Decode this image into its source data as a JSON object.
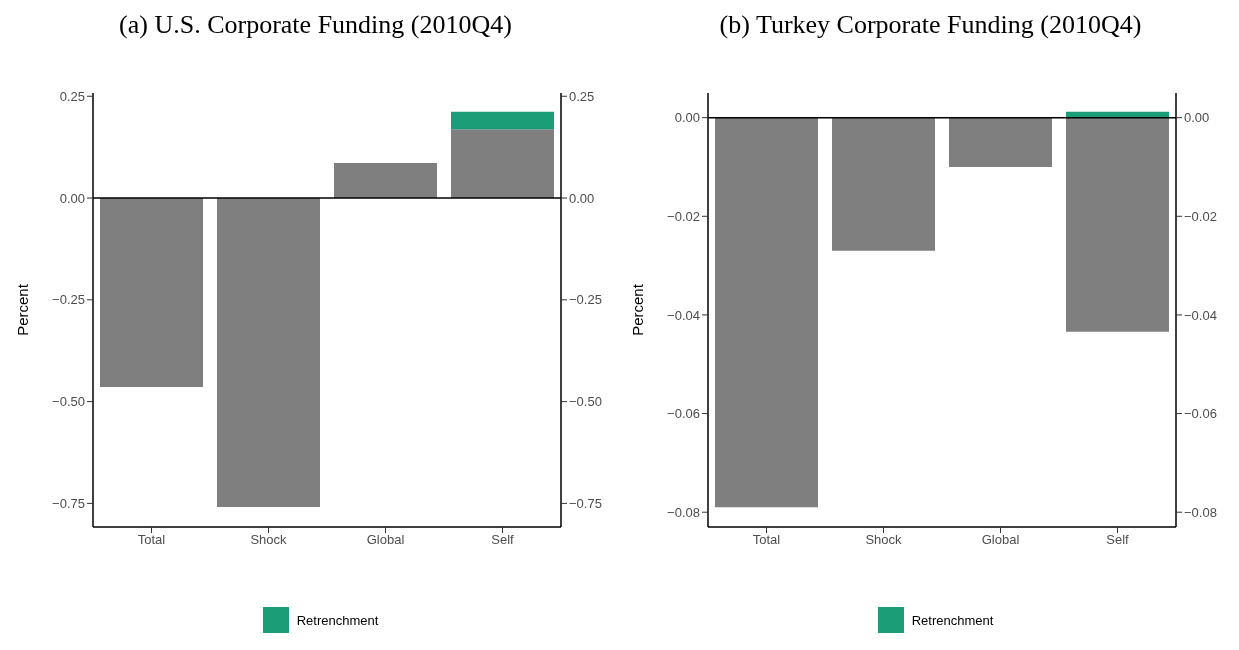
{
  "chart_data": [
    {
      "type": "bar",
      "title": "(a) U.S. Corporate Funding (2010Q4)",
      "ylabel": "Percent",
      "categories": [
        "Total",
        "Shock",
        "Global",
        "Self"
      ],
      "stacked": true,
      "series": [
        {
          "color": "#7f7f7f",
          "values": [
            -0.464,
            -0.759,
            0.086,
            0.169
          ]
        },
        {
          "name": "Retrenchment",
          "color": "#1b9e77",
          "values": [
            null,
            null,
            null,
            0.043
          ]
        }
      ],
      "ylim": [
        -0.808,
        0.258
      ],
      "yticks": [
        {
          "value": -0.75,
          "label": "−0.75"
        },
        {
          "value": -0.5,
          "label": "−0.50"
        },
        {
          "value": -0.25,
          "label": "−0.25"
        },
        {
          "value": 0,
          "label": "0.00"
        },
        {
          "value": 0.25,
          "label": "0.25"
        }
      ],
      "y2lim": [
        -0.808,
        0.258
      ],
      "y2ticks": [
        {
          "value": -0.75,
          "label": "−0.75"
        },
        {
          "value": -0.5,
          "label": "−0.50"
        },
        {
          "value": -0.25,
          "label": "−0.25"
        },
        {
          "value": 0,
          "label": "0.00"
        },
        {
          "value": 0.25,
          "label": "0.25"
        }
      ],
      "ref_lines": [
        {
          "axis": "y",
          "value": 0,
          "color": "#000000"
        }
      ],
      "grid": false,
      "legend": "bottom"
    },
    {
      "type": "bar",
      "title": "(b) Turkey Corporate Funding (2010Q4)",
      "ylabel": "Percent",
      "categories": [
        "Total",
        "Shock",
        "Global",
        "Self"
      ],
      "stacked": true,
      "series": [
        {
          "color": "#7f7f7f",
          "values": [
            -0.079,
            -0.027,
            -0.01,
            -0.0434
          ]
        },
        {
          "name": "Retrenchment",
          "color": "#1b9e77",
          "values": [
            null,
            null,
            null,
            0.0012
          ]
        }
      ],
      "ylim": [
        -0.083,
        0.005
      ],
      "yticks": [
        {
          "value": -0.08,
          "label": "−0.08"
        },
        {
          "value": -0.06,
          "label": "−0.06"
        },
        {
          "value": -0.04,
          "label": "−0.04"
        },
        {
          "value": -0.02,
          "label": "−0.02"
        },
        {
          "value": 0,
          "label": "0.00"
        }
      ],
      "y2lim": [
        -0.083,
        0.005
      ],
      "y2ticks": [
        {
          "value": -0.08,
          "label": "−0.08"
        },
        {
          "value": -0.06,
          "label": "−0.06"
        },
        {
          "value": -0.04,
          "label": "−0.04"
        },
        {
          "value": -0.02,
          "label": "−0.02"
        },
        {
          "value": 0,
          "label": "0.00"
        }
      ],
      "ref_lines": [
        {
          "axis": "y",
          "value": 0,
          "color": "#000000"
        }
      ],
      "grid": false,
      "legend": "bottom"
    }
  ]
}
